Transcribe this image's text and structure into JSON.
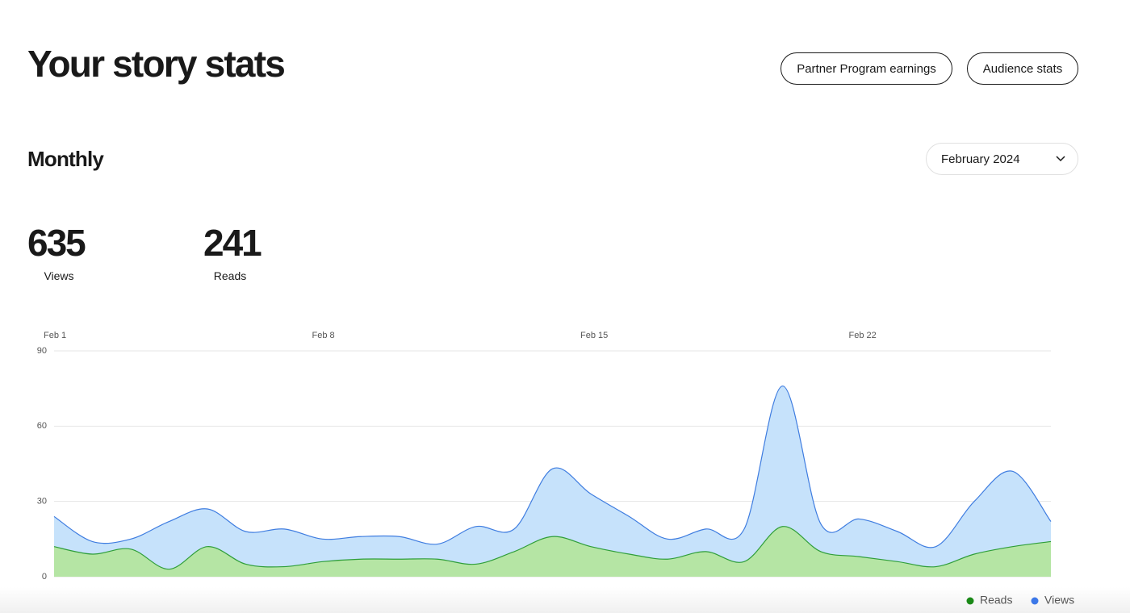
{
  "header": {
    "title": "Your story stats",
    "buttons": [
      "Partner Program earnings",
      "Audience stats"
    ]
  },
  "section": {
    "title": "Monthly",
    "period": "February 2024"
  },
  "stats": [
    {
      "value": 635,
      "label": "Views"
    },
    {
      "value": 241,
      "label": "Reads"
    }
  ],
  "chart_data": {
    "type": "area",
    "categories": [
      "Feb 1",
      null,
      null,
      null,
      null,
      null,
      null,
      "Feb 8",
      null,
      null,
      null,
      null,
      null,
      null,
      "Feb 15",
      null,
      null,
      null,
      null,
      null,
      null,
      "Feb 22",
      null,
      null,
      null,
      null,
      null
    ],
    "series": [
      {
        "name": "Reads",
        "color": "#2f9e3a",
        "fill": "#b5e5a4",
        "legend_color": "#1a8917",
        "values": [
          12,
          9,
          11,
          3,
          12,
          5,
          4,
          6,
          7,
          7,
          7,
          5,
          10,
          16,
          12,
          9,
          7,
          10,
          6,
          20,
          10,
          8,
          6,
          4,
          9,
          12,
          14
        ]
      },
      {
        "name": "Views",
        "color": "#3f7de0",
        "fill": "#c6e2fb",
        "legend_color": "#3c78e8",
        "values": [
          24,
          14,
          15,
          22,
          27,
          18,
          19,
          15,
          16,
          16,
          13,
          20,
          19,
          43,
          33,
          24,
          15,
          19,
          19,
          76,
          21,
          23,
          18,
          12,
          30,
          42,
          22
        ]
      }
    ],
    "ylim": [
      0,
      90
    ],
    "yticks": [
      0,
      30,
      60,
      90
    ],
    "grid": true
  }
}
